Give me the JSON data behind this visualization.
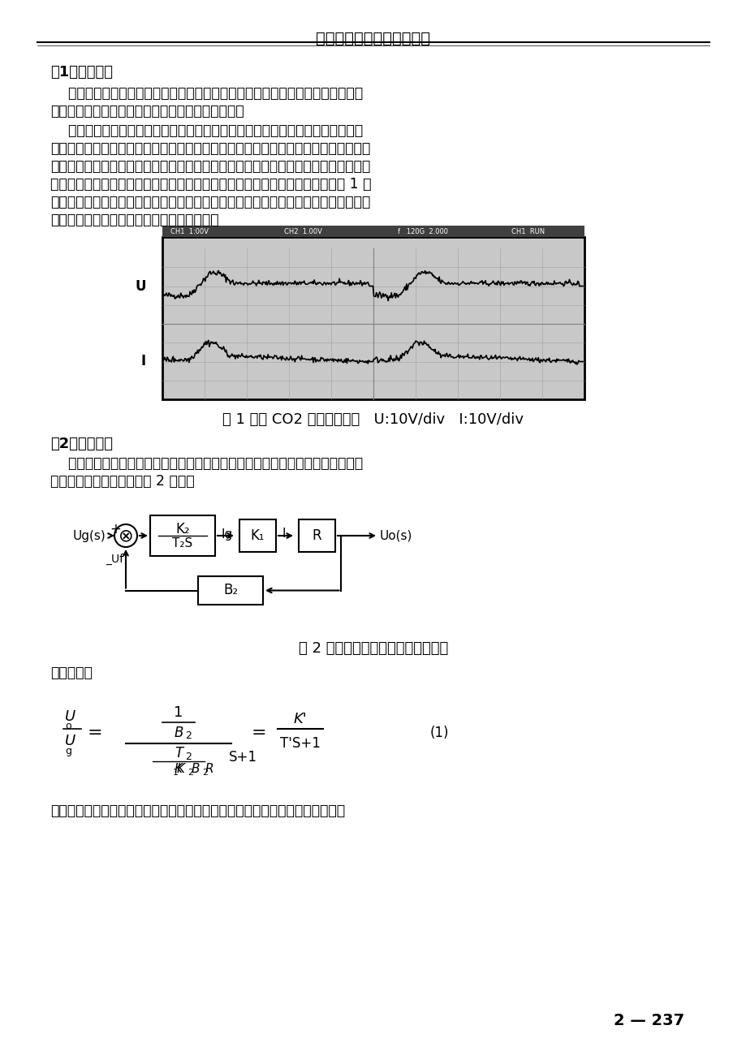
{
  "title": "第九次全国焊接会议论文集",
  "bg_color": "#ffffff",
  "text_color": "#000000",
  "section1_header": "（1）短路控制",
  "section1_para1": "当判断焊接过程处于短路状态时，使电流给定信号沿某一设定曲线上升，从而控\n制电流的上升速度，实现短路时的电子电抗器作用。",
  "section1_para2": "当短路发生后，电流并不立即上升，而是滞后一段时间。这样可使短路初期电流\n保持在一较低的水平，熔滴可以柔顺的与熔池接触并摊开。此后短路电流快速上升，不\n会产生瞬时短路，却有利于形成颈缩。之后使电流沿一斜率较小的直线上升，则可以在\n短路峰值电流不太高的情况下，发生小桥爆断而减小正常短路飞溅。其波形如图 1 所\n示。实验表明，采用这种短路控制方式，可以有效的抑制瞬时短路，焊接过程中几乎没\n有人滴飞溅，焊后工作表面清洁，勿需清理。",
  "fig1_caption": "图 1 逆变 CO2 焊机工作波形   U:10V/div   I:10V/div",
  "section2_header": "（2）燃弧控制",
  "section2_para1": "为了提高燃弧能量，改善焊缝成形，这里也采用电子电抗器的方式，控制燃弧电\n流的下降速度。其结构如图 2 所示：",
  "fig2_caption": "图 2 带电子电抗器的恒压电源结构图",
  "from_fig": "由图可得：",
  "section3_para1": "由上式可知，在控制电路中串入一积分环节，则其传输函数和传统晶闸管整流式",
  "page_num": "2 — 237"
}
